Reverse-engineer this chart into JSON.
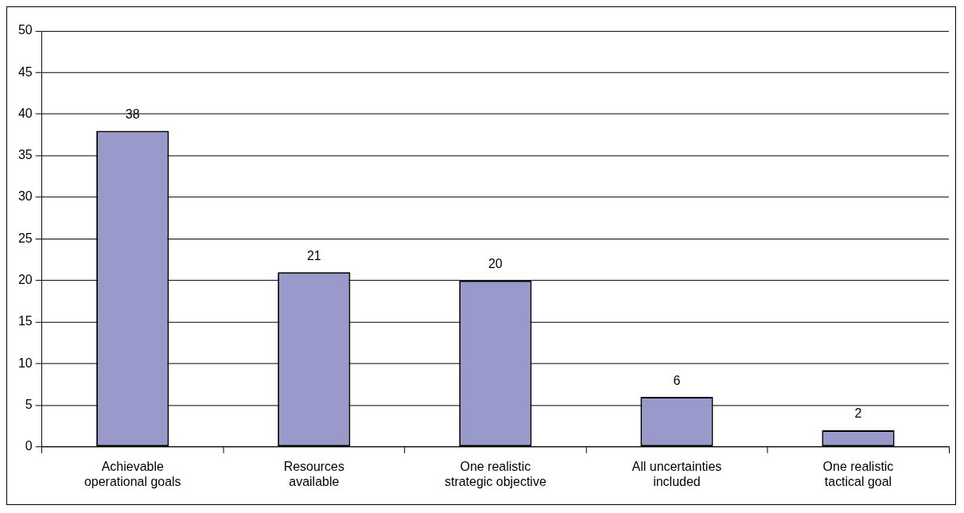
{
  "chart_data": {
    "type": "bar",
    "categories": [
      "Achievable operational goals",
      "Resources available",
      "One realistic strategic objective",
      "All uncertainties included",
      "One realistic tactical goal"
    ],
    "values": [
      38,
      21,
      20,
      6,
      2
    ],
    "color": "#9999cc",
    "ylim": [
      0,
      50
    ],
    "yticks": [
      0,
      5,
      10,
      15,
      20,
      25,
      30,
      35,
      40,
      45,
      50
    ],
    "grid": "y",
    "legend": false,
    "data_labels": true
  }
}
